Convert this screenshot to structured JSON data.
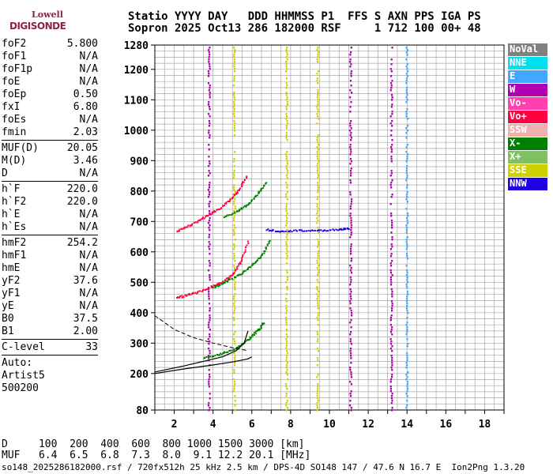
{
  "logo": {
    "line1": "Lowell",
    "line2": "DIGISONDE"
  },
  "header": {
    "line1": "Statio YYYY DAY   DDD HHMMSS P1  FFS S AXN PPS IGA PS",
    "line2": "Sopron 2025 Oct13 286 182000 RSF     1 712 100 00+ 48"
  },
  "params": {
    "group1": [
      {
        "label": "foF2",
        "value": "5.800"
      },
      {
        "label": "foF1",
        "value": "N/A"
      },
      {
        "label": "foF1p",
        "value": "N/A"
      },
      {
        "label": "foE",
        "value": "N/A"
      },
      {
        "label": "foEp",
        "value": "0.50"
      },
      {
        "label": "fxI",
        "value": "6.80"
      },
      {
        "label": "foEs",
        "value": "N/A"
      },
      {
        "label": "fmin",
        "value": "2.03"
      }
    ],
    "group2": [
      {
        "label": "MUF(D)",
        "value": "20.05"
      },
      {
        "label": "M(D)",
        "value": "3.46"
      },
      {
        "label": "D",
        "value": "N/A"
      }
    ],
    "group3": [
      {
        "label": "h`F",
        "value": "220.0"
      },
      {
        "label": "h`F2",
        "value": "220.0"
      },
      {
        "label": "h`E",
        "value": "N/A"
      },
      {
        "label": "h`Es",
        "value": "N/A"
      }
    ],
    "group4": [
      {
        "label": "hmF2",
        "value": "254.2"
      },
      {
        "label": "hmF1",
        "value": "N/A"
      },
      {
        "label": "hmE",
        "value": "N/A"
      },
      {
        "label": "yF2",
        "value": "37.6"
      },
      {
        "label": "yF1",
        "value": "N/A"
      },
      {
        "label": "yE",
        "value": "N/A"
      },
      {
        "label": "B0",
        "value": "37.5"
      },
      {
        "label": "B1",
        "value": "2.00"
      }
    ],
    "group5": [
      {
        "label": "C-level",
        "value": "33"
      }
    ],
    "auto": [
      "Auto:",
      "Artist5",
      "500200"
    ]
  },
  "legend": [
    {
      "label": "NoVal",
      "color": "#808080"
    },
    {
      "label": "NNE",
      "color": "#00e0f0"
    },
    {
      "label": "E",
      "color": "#40a8ff"
    },
    {
      "label": "W",
      "color": "#b000b0"
    },
    {
      "label": "Vo-",
      "color": "#ff40b0"
    },
    {
      "label": "Vo+",
      "color": "#ff0040"
    },
    {
      "label": "SSW",
      "color": "#f0b0b0"
    },
    {
      "label": "X-",
      "color": "#008000"
    },
    {
      "label": "X+",
      "color": "#80c060"
    },
    {
      "label": "SSE",
      "color": "#d0d000"
    },
    {
      "label": "NNW",
      "color": "#2000e0"
    }
  ],
  "bottom": {
    "line1": "D     100  200  400  600  800 1000 1500 3000 [km]",
    "line2": "MUF   6.4  6.5  6.8  7.3  8.0  9.1 12.2 20.1 [MHz]"
  },
  "footer": "so148_2025286182000.rsf / 720fx512h 25 kHz 2.5 km / DPS-4D SO148 147 / 47.6 N 16.7 E  Ion2Png 1.3.20",
  "chart_data": {
    "type": "scatter",
    "xlim": [
      1,
      19
    ],
    "ylim": [
      80,
      1280
    ],
    "x_ticks": [
      2,
      4,
      6,
      8,
      10,
      12,
      14,
      16,
      18
    ],
    "y_ticks": [
      80,
      200,
      300,
      400,
      500,
      600,
      700,
      800,
      900,
      1000,
      1100,
      1200,
      1280
    ],
    "grid": true,
    "legend_placement": "right",
    "vertical_bands": [
      {
        "x": 7.8,
        "color": "#d0d000"
      },
      {
        "x": 9.4,
        "color": "#d0d000"
      },
      {
        "x": 11.1,
        "color": "#b000b0"
      },
      {
        "x": 13.2,
        "color": "#b000b0"
      },
      {
        "x": 14.0,
        "color": "#40a8ff"
      },
      {
        "x": 3.8,
        "color": "#b000b0"
      },
      {
        "x": 5.1,
        "color": "#d0d000"
      }
    ],
    "series": [
      {
        "color": "#ff0040",
        "points": [
          [
            2.1,
            450
          ],
          [
            2.6,
            460
          ],
          [
            3.2,
            470
          ],
          [
            4.0,
            490
          ],
          [
            4.5,
            505
          ],
          [
            5.0,
            530
          ],
          [
            5.4,
            570
          ],
          [
            5.8,
            640
          ]
        ]
      },
      {
        "color": "#ff0040",
        "points": [
          [
            2.1,
            670
          ],
          [
            2.8,
            690
          ],
          [
            3.5,
            715
          ],
          [
            4.2,
            740
          ],
          [
            4.8,
            770
          ],
          [
            5.3,
            805
          ],
          [
            5.7,
            850
          ]
        ]
      },
      {
        "color": "#008000",
        "points": [
          [
            3.5,
            255
          ],
          [
            4.3,
            265
          ],
          [
            5.0,
            280
          ],
          [
            5.5,
            300
          ],
          [
            5.9,
            320
          ],
          [
            6.3,
            345
          ],
          [
            6.6,
            370
          ]
        ]
      },
      {
        "color": "#008000",
        "points": [
          [
            4.0,
            485
          ],
          [
            4.7,
            505
          ],
          [
            5.4,
            530
          ],
          [
            6.0,
            560
          ],
          [
            6.5,
            590
          ],
          [
            6.9,
            640
          ]
        ]
      },
      {
        "color": "#008000",
        "points": [
          [
            4.5,
            715
          ],
          [
            5.2,
            735
          ],
          [
            5.8,
            760
          ],
          [
            6.3,
            795
          ],
          [
            6.7,
            830
          ]
        ]
      },
      {
        "color": "#2000e0",
        "points": [
          [
            6.7,
            675
          ],
          [
            7.5,
            670
          ],
          [
            8.5,
            672
          ],
          [
            9.5,
            673
          ],
          [
            10.5,
            675
          ],
          [
            11.0,
            680
          ]
        ]
      }
    ],
    "profile": {
      "color": "#000000",
      "solid_lower": [
        [
          1.0,
          200
        ],
        [
          2.5,
          215
        ],
        [
          4.0,
          228
        ],
        [
          5.0,
          238
        ],
        [
          5.8,
          248
        ],
        [
          6.0,
          255
        ]
      ],
      "solid_upper": [
        [
          1.0,
          205
        ],
        [
          2.5,
          225
        ],
        [
          3.5,
          240
        ],
        [
          4.5,
          255
        ],
        [
          5.2,
          275
        ],
        [
          5.6,
          300
        ],
        [
          5.8,
          340
        ]
      ],
      "dashed": [
        [
          1.0,
          390
        ],
        [
          2.0,
          345
        ],
        [
          3.0,
          318
        ],
        [
          4.0,
          300
        ],
        [
          5.0,
          285
        ],
        [
          5.8,
          275
        ]
      ]
    }
  }
}
